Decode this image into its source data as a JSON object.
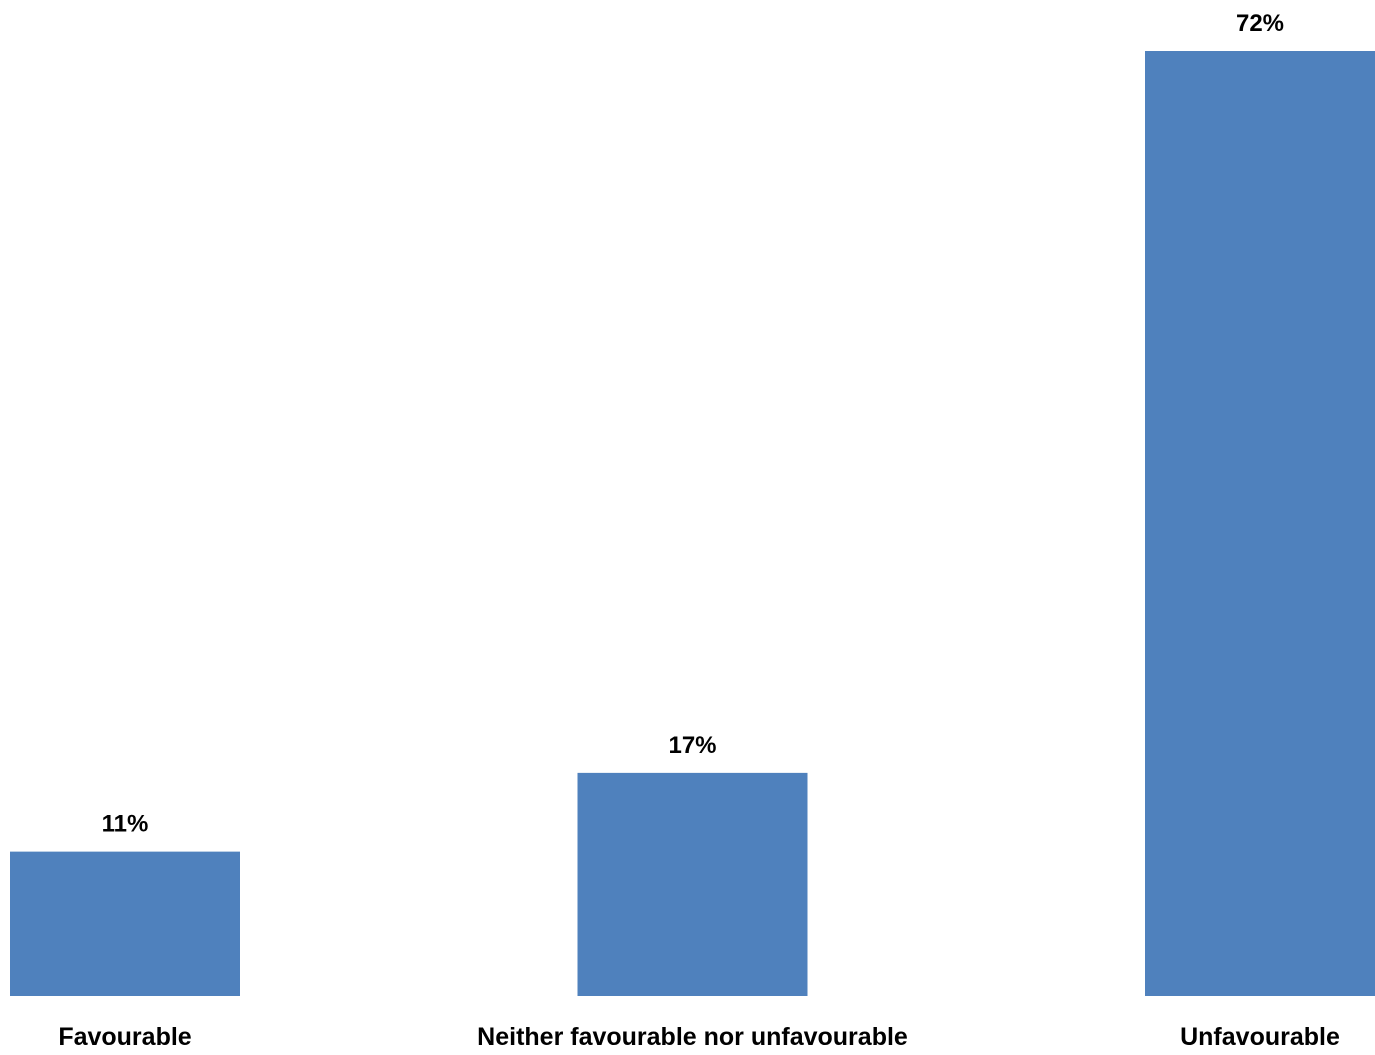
{
  "chart_data": {
    "type": "bar",
    "categories": [
      "Favourable",
      "Neither favourable nor unfavourable",
      "Unfavourable"
    ],
    "values": [
      11,
      17,
      72
    ],
    "value_labels": [
      "11%",
      "17%",
      "72%"
    ],
    "ylim": [
      0,
      72
    ],
    "grid": false,
    "legend": "none",
    "bar_color": "#4F81BD"
  }
}
